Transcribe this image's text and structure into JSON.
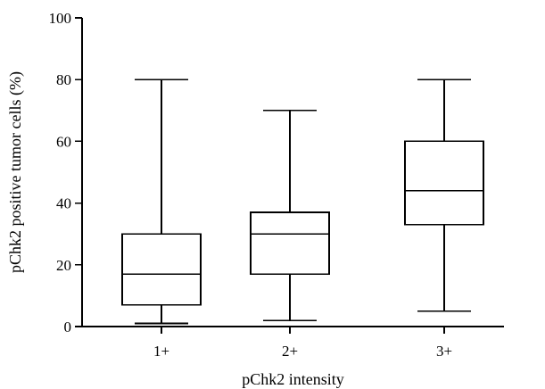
{
  "chart_data": {
    "type": "box",
    "categories": [
      "1+",
      "2+",
      "3+"
    ],
    "series": [
      {
        "values": [
          {
            "category": "1+",
            "min": 1,
            "q1": 7,
            "median": 17,
            "q3": 30,
            "max": 80
          },
          {
            "category": "2+",
            "min": 2,
            "q1": 17,
            "median": 30,
            "q3": 37,
            "max": 70
          },
          {
            "category": "3+",
            "min": 5,
            "q1": 33,
            "median": 44,
            "q3": 60,
            "max": 80
          }
        ]
      }
    ],
    "title": "",
    "xlabel": "pChk2 intensity",
    "ylabel": "pChk2 positive tumor cells (%)",
    "ylim": [
      0,
      100
    ],
    "yticks": [
      0,
      20,
      40,
      60,
      80,
      100
    ],
    "grid": false,
    "legend": "none"
  }
}
